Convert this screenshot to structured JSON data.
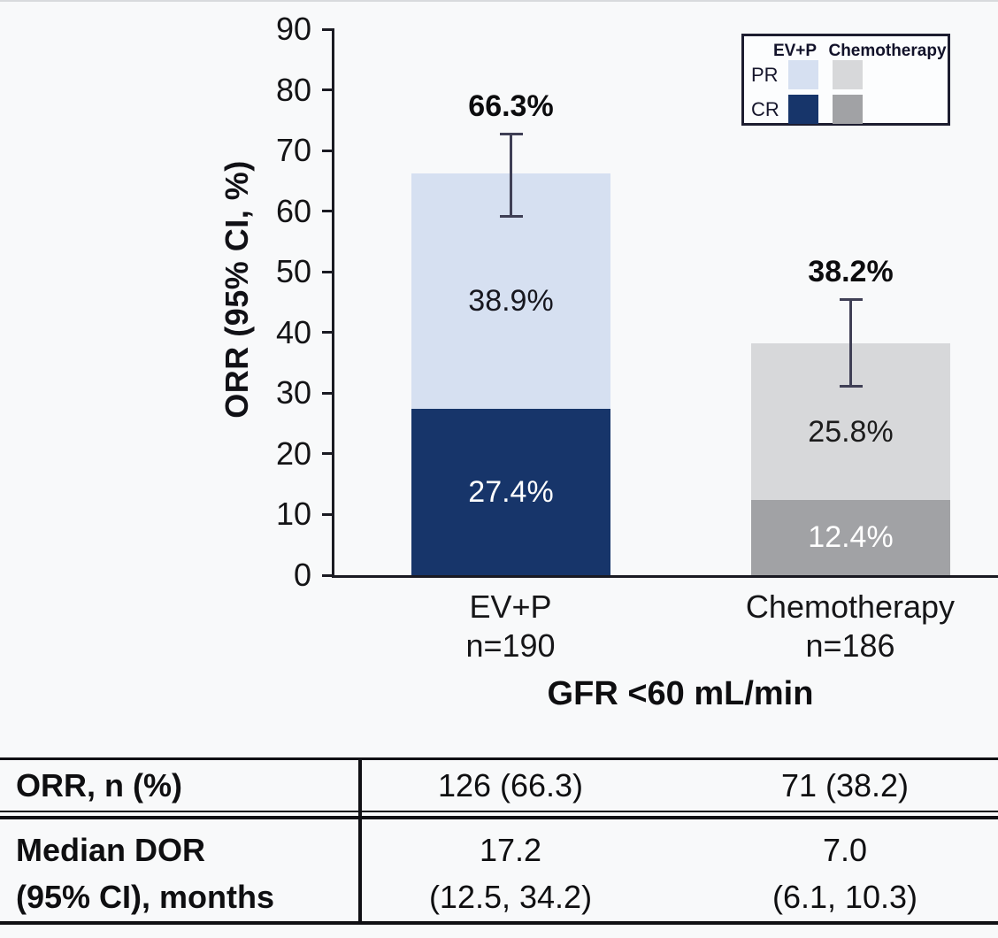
{
  "chart_data": {
    "type": "bar",
    "subtype": "stacked-vertical",
    "title": "",
    "ylabel": "ORR (95% CI, %)",
    "xlabel": "GFR <60 mL/min",
    "ylim": [
      0,
      90
    ],
    "yticks": [
      0,
      10,
      20,
      30,
      40,
      50,
      60,
      70,
      80,
      90
    ],
    "grid": false,
    "legend_position": "top-right",
    "categories": [
      {
        "label": "EV+P",
        "n_label": "n=190"
      },
      {
        "label": "Chemotherapy",
        "n_label": "n=186"
      }
    ],
    "series": [
      {
        "name": "CR",
        "values": [
          27.4,
          12.4
        ],
        "value_labels": [
          "27.4%",
          "12.4%"
        ],
        "colors": [
          "#17356a",
          "#a1a2a5"
        ],
        "text_colors": [
          "#ffffff",
          "#ffffff"
        ]
      },
      {
        "name": "PR",
        "values": [
          38.9,
          25.8
        ],
        "value_labels": [
          "38.9%",
          "25.8%"
        ],
        "colors": [
          "#d6e0f1",
          "#d7d8da"
        ],
        "text_colors": [
          "#17171f",
          "#1c1c1c"
        ]
      }
    ],
    "totals": {
      "values": [
        66.3,
        38.2
      ],
      "value_labels": [
        "66.3%",
        "38.2%"
      ]
    },
    "error_bars": [
      {
        "low": 59.1,
        "high": 72.7
      },
      {
        "low": 31.1,
        "high": 45.4
      }
    ]
  },
  "legend": {
    "columns": [
      "EV+P",
      "Chemotherapy"
    ],
    "rows": [
      {
        "label": "PR",
        "colors": [
          "#d6e0f1",
          "#d7d8da"
        ]
      },
      {
        "label": "CR",
        "colors": [
          "#17356a",
          "#a1a2a5"
        ]
      }
    ]
  },
  "table": {
    "rows": [
      {
        "label_lines": [
          "ORR, n (%)"
        ],
        "evp_lines": [
          "126 (66.3)"
        ],
        "chemo_lines": [
          "71 (38.2)"
        ]
      },
      {
        "label_lines": [
          "Median DOR",
          "(95% CI), months"
        ],
        "evp_lines": [
          "17.2",
          "(12.5, 34.2)"
        ],
        "chemo_lines": [
          "7.0",
          "(6.1, 10.3)"
        ]
      }
    ]
  }
}
